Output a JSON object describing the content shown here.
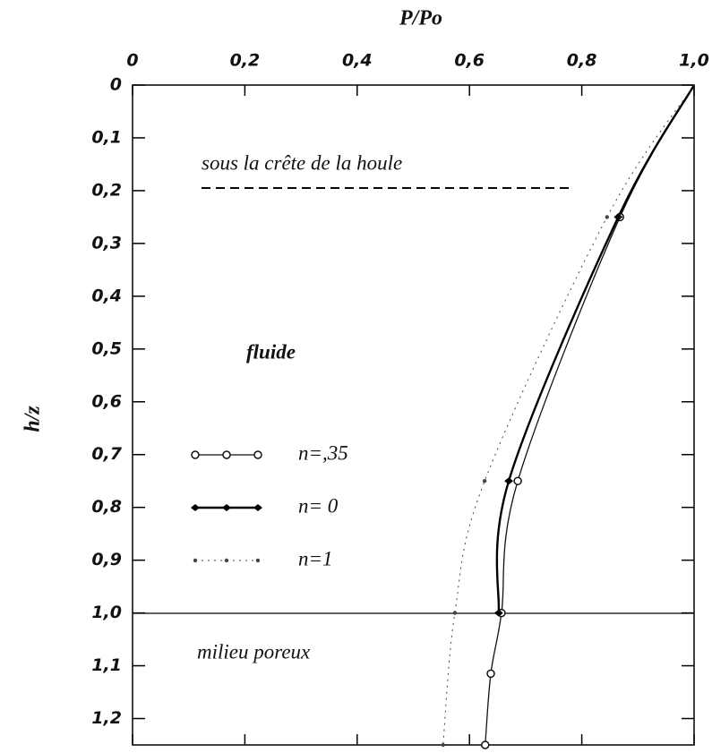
{
  "chart_data": {
    "type": "line",
    "x_label": "P/Po",
    "y_label": "h/z",
    "xlim": [
      0,
      1
    ],
    "ylim": [
      0,
      1.25
    ],
    "xticks": [
      0,
      {
        "value": 0.2,
        "label": "0,2"
      },
      {
        "value": 0.4,
        "label": "0,4"
      },
      {
        "value": 0.6,
        "label": "0,6"
      },
      {
        "value": 0.8,
        "label": "0,8"
      },
      {
        "value": 1,
        "label": "1,0"
      }
    ],
    "yticks": [
      0,
      {
        "value": 0.1,
        "label": "0,1"
      },
      {
        "value": 0.2,
        "label": "0,2"
      },
      {
        "value": 0.3,
        "label": "0,3"
      },
      {
        "value": 0.4,
        "label": "0,4"
      },
      {
        "value": 0.5,
        "label": "0,5"
      },
      {
        "value": 0.6,
        "label": "0,6"
      },
      {
        "value": 0.7,
        "label": "0,7"
      },
      {
        "value": 0.8,
        "label": "0,8"
      },
      {
        "value": 0.9,
        "label": "0,9"
      },
      {
        "value": 1,
        "label": "1,0"
      },
      {
        "value": 1.1,
        "label": "1,1"
      },
      {
        "value": 1.2,
        "label": "1,2"
      }
    ],
    "annotations": [
      "sous la crête de la houle",
      "fluide",
      "milieu poreux"
    ],
    "series": [
      {
        "name": "n=,35",
        "color": "#111",
        "marker": "circle",
        "x": [
          1,
          0.868,
          0.686,
          0.657,
          0.638,
          0.628
        ],
        "values": [
          0,
          0.25,
          0.75,
          1.0,
          1.115,
          1.25
        ]
      },
      {
        "name": "n= 0",
        "color": "#000",
        "marker": "diamond",
        "x": [
          1,
          0.865,
          0.67,
          0.652
        ],
        "values": [
          0,
          0.25,
          0.75,
          1.0
        ]
      },
      {
        "name": "n=1",
        "color": "#444",
        "marker": "dot",
        "x": [
          1,
          0.845,
          0.627,
          0.574,
          0.553
        ],
        "values": [
          0,
          0.25,
          0.75,
          1.0,
          1.25
        ]
      }
    ]
  }
}
